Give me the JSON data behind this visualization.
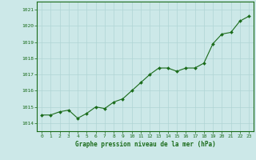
{
  "x": [
    0,
    1,
    2,
    3,
    4,
    5,
    6,
    7,
    8,
    9,
    10,
    11,
    12,
    13,
    14,
    15,
    16,
    17,
    18,
    19,
    20,
    21,
    22,
    23
  ],
  "y": [
    1014.5,
    1014.5,
    1014.7,
    1014.8,
    1014.3,
    1014.6,
    1015.0,
    1014.9,
    1015.3,
    1015.5,
    1016.0,
    1016.5,
    1017.0,
    1017.4,
    1017.4,
    1017.2,
    1017.4,
    1017.4,
    1017.7,
    1018.9,
    1019.5,
    1019.6,
    1020.3,
    1020.6
  ],
  "line_color": "#1a6b1a",
  "marker_color": "#1a6b1a",
  "bg_color": "#cce8e8",
  "grid_color": "#b0d4d4",
  "xlabel": "Graphe pression niveau de la mer (hPa)",
  "xlabel_color": "#1a6b1a",
  "tick_color": "#1a6b1a",
  "ylim": [
    1013.5,
    1021.5
  ],
  "yticks": [
    1014,
    1015,
    1016,
    1017,
    1018,
    1019,
    1020,
    1021
  ],
  "xlim": [
    -0.5,
    23.5
  ],
  "xticks": [
    0,
    1,
    2,
    3,
    4,
    5,
    6,
    7,
    8,
    9,
    10,
    11,
    12,
    13,
    14,
    15,
    16,
    17,
    18,
    19,
    20,
    21,
    22,
    23
  ]
}
